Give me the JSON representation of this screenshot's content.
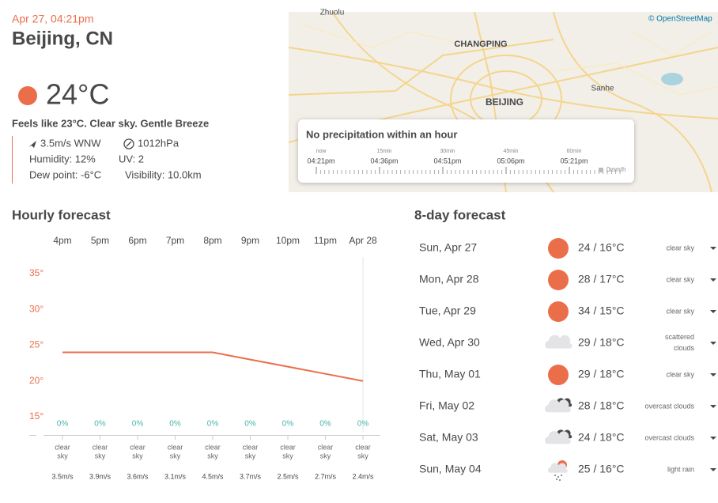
{
  "header": {
    "datetime": "Apr 27, 04:21pm",
    "city": "Beijing, CN",
    "temperature": "24°C",
    "summary": "Feels like 23°C. Clear sky. Gentle Breeze",
    "wind": "3.5m/s WNW",
    "pressure": "1012hPa",
    "humidity": "Humidity: 12%",
    "uv": "UV: 2",
    "dew_point": "Dew point: -6°C",
    "visibility": "Visibility: 10.0km"
  },
  "map": {
    "attribution": "© OpenStreetMap",
    "labels": [
      "Zhuolu",
      "CHANGPING",
      "BEIJING",
      "Sanhe"
    ],
    "precipitation": {
      "title": "No precipitation within an hour",
      "ticks": [
        {
          "label": "now",
          "time": "04:21pm"
        },
        {
          "label": "15min",
          "time": "04:36pm"
        },
        {
          "label": "30min",
          "time": "04:51pm"
        },
        {
          "label": "45min",
          "time": "05:06pm"
        },
        {
          "label": "60min",
          "time": "05:21pm"
        }
      ],
      "legend": "0mm/h"
    }
  },
  "hourly": {
    "title": "Hourly forecast",
    "type": "line",
    "color": "#eb6e4b",
    "hours": [
      "4pm",
      "5pm",
      "6pm",
      "7pm",
      "8pm",
      "9pm",
      "10pm",
      "11pm",
      "Apr 28"
    ],
    "temperatures": [
      24,
      24,
      24,
      24,
      24,
      23,
      22,
      21,
      20
    ],
    "ylim": [
      15,
      35
    ],
    "yticks": [
      {
        "value": 35,
        "label": "35°"
      },
      {
        "value": 30,
        "label": "30°"
      },
      {
        "value": 25,
        "label": "25°"
      },
      {
        "value": 20,
        "label": "20°"
      },
      {
        "value": 15,
        "label": "15°"
      }
    ],
    "precipitation": [
      "0%",
      "0%",
      "0%",
      "0%",
      "0%",
      "0%",
      "0%",
      "0%",
      "0%"
    ],
    "conditions": [
      "clear sky",
      "clear sky",
      "clear sky",
      "clear sky",
      "clear sky",
      "clear sky",
      "clear sky",
      "clear sky",
      "clear sky"
    ],
    "wind": [
      "3.5m/s",
      "3.9m/s",
      "3.6m/s",
      "3.1m/s",
      "4.5m/s",
      "3.7m/s",
      "2.5m/s",
      "2.7m/s",
      "2.4m/s"
    ]
  },
  "daily": {
    "title": "8-day forecast",
    "days": [
      {
        "date": "Sun, Apr 27",
        "temps": "24 / 16°C",
        "description": "clear sky",
        "icon": "sun"
      },
      {
        "date": "Mon, Apr 28",
        "temps": "28 / 17°C",
        "description": "clear sky",
        "icon": "sun"
      },
      {
        "date": "Tue, Apr 29",
        "temps": "34 / 15°C",
        "description": "clear sky",
        "icon": "sun"
      },
      {
        "date": "Wed, Apr 30",
        "temps": "29 / 18°C",
        "description": "scattered clouds",
        "icon": "cloud"
      },
      {
        "date": "Thu, May 01",
        "temps": "29 / 18°C",
        "description": "clear sky",
        "icon": "sun"
      },
      {
        "date": "Fri, May 02",
        "temps": "28 / 18°C",
        "description": "overcast clouds",
        "icon": "overcast"
      },
      {
        "date": "Sat, May 03",
        "temps": "24 / 18°C",
        "description": "overcast clouds",
        "icon": "overcast"
      },
      {
        "date": "Sun, May 04",
        "temps": "25 / 16°C",
        "description": "light rain",
        "icon": "rain"
      }
    ]
  }
}
